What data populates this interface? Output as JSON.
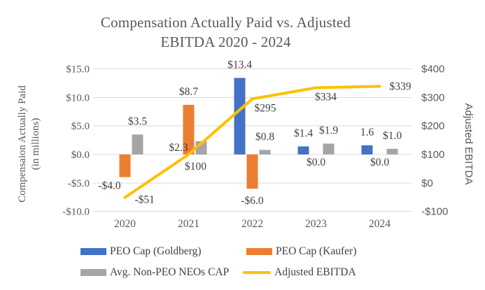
{
  "title": {
    "line1": "Compensation Actually Paid vs. Adjusted",
    "line2": "EBITDA 2020 - 2024"
  },
  "chart_data": {
    "type": "combo-bar-line",
    "categories": [
      "2020",
      "2021",
      "2022",
      "2023",
      "2024"
    ],
    "bar_series": [
      {
        "name": "PEO Cap (Goldberg)",
        "color": "#4472C4",
        "values": [
          null,
          null,
          13.4,
          1.4,
          1.6
        ],
        "labels": [
          "",
          "",
          "$13.4",
          "$1.4",
          "1.6"
        ]
      },
      {
        "name": "PEO Cap (Kaufer)",
        "color": "#ED7D31",
        "values": [
          -4.0,
          8.7,
          -6.0,
          0.0,
          0.0
        ],
        "labels": [
          "-$4.0",
          "$8.7",
          "-$6.0",
          "$0.0",
          "$0.0"
        ]
      },
      {
        "name": "Avg. Non-PEO NEOs CAP",
        "color": "#A5A5A5",
        "values": [
          3.5,
          2.3,
          0.8,
          1.9,
          1.0
        ],
        "labels": [
          "$3.5",
          "$2.3",
          "$0.8",
          "$1.9",
          "$1.0"
        ]
      }
    ],
    "line_series": {
      "name": "Adjusted EBITDA",
      "color": "#FFC000",
      "axis": "right",
      "values": [
        -51,
        100,
        295,
        334,
        339
      ],
      "labels": [
        "-$51",
        "$100",
        "$295",
        "$334",
        "$339"
      ]
    },
    "left_axis": {
      "title_line1": "Compensaion Actually Paid",
      "title_line2": "(in millions)",
      "ticks": [
        "$15.0",
        "$10.0",
        "$5.0",
        "$0.0",
        "-$5.0",
        "-$10.0"
      ],
      "tick_values": [
        15,
        10,
        5,
        0,
        -5,
        -10
      ],
      "min": -10,
      "max": 15
    },
    "right_axis": {
      "title": "Adjusted EBITDA",
      "ticks": [
        "$400",
        "$300",
        "$200",
        "$100",
        "$0",
        "-$100"
      ],
      "tick_values": [
        400,
        300,
        200,
        100,
        0,
        -100
      ],
      "min": -100,
      "max": 400
    },
    "grid": true,
    "legend_position": "bottom",
    "colors": {
      "gridline": "#D9D9D9",
      "axis_text": "#595959",
      "data_label": "#404040",
      "title_text": "#595959"
    }
  }
}
